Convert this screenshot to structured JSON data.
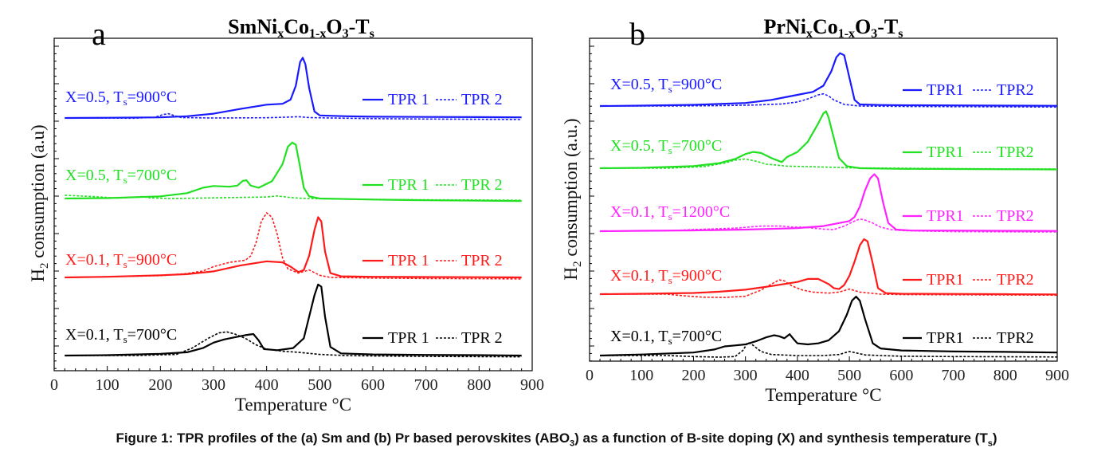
{
  "caption": {
    "text_1": "Figure 1: TPR profiles of the (a) Sm and (b) Pr based perovskites (ABO",
    "sub_1": "3",
    "text_2": ") as a function of B-site doping (X) and synthesis temperature (T",
    "sub_2": "s",
    "text_3": ")"
  },
  "colors": {
    "black": "#000000",
    "red": "#ff1a1a",
    "green": "#22e022",
    "blue": "#1a1aff",
    "magenta": "#ff22ff"
  },
  "chart_data": [
    {
      "type": "line",
      "panel_letter": "a",
      "title_parts": {
        "a": "SmNi",
        "x": "x",
        "b": "Co",
        "c": "1-x",
        "d": "O",
        "e": "3",
        "f": "-T",
        "g": "s"
      },
      "xlabel": "Temperature °C",
      "ylabel_parts": {
        "a": "H",
        "sub": "2",
        "b": " consumption (a.u)"
      },
      "xlim": [
        0,
        900
      ],
      "xticks": [
        "0",
        "100",
        "200",
        "300",
        "400",
        "500",
        "600",
        "700",
        "800",
        "900"
      ],
      "legend_placement": "right of each trace",
      "series": [
        {
          "label_parts": {
            "a": "X=0.5, T",
            "sub": "s",
            "b": "=900°C"
          },
          "color": "blue",
          "legend": {
            "solid": "TPR 1",
            "dashed": "TPR 2"
          },
          "tpr1_x": [
            20,
            100,
            200,
            250,
            300,
            350,
            400,
            430,
            445,
            455,
            463,
            468,
            473,
            480,
            490,
            500,
            550,
            600,
            700,
            800,
            880
          ],
          "tpr1_y": [
            0,
            0.1,
            0.3,
            0.8,
            2.0,
            4.2,
            6.2,
            6.6,
            8.5,
            15,
            26,
            28,
            25,
            14,
            3.0,
            1.2,
            0.8,
            0.6,
            0.5,
            0.4,
            0.3
          ],
          "tpr2_x": [
            20,
            150,
            190,
            205,
            215,
            225,
            240,
            300,
            400,
            440,
            460,
            480,
            520,
            600,
            700,
            800,
            880
          ],
          "tpr2_y": [
            0,
            -0.1,
            0.3,
            1.6,
            2.0,
            1.2,
            0.2,
            0,
            0.1,
            0.4,
            0.6,
            0.2,
            0,
            -0.3,
            -0.5,
            -0.6,
            -0.7
          ]
        },
        {
          "label_parts": {
            "a": "X=0.5, T",
            "sub": "s",
            "b": "=700°C"
          },
          "color": "green",
          "legend": {
            "solid": "TPR 1",
            "dashed": "TPR 2"
          },
          "tpr1_x": [
            20,
            100,
            200,
            250,
            280,
            300,
            330,
            345,
            355,
            362,
            370,
            385,
            410,
            430,
            440,
            448,
            455,
            462,
            470,
            480,
            500,
            600,
            700,
            800,
            880
          ],
          "tpr1_y": [
            0,
            0.2,
            1.0,
            2.5,
            5.0,
            5.8,
            5.5,
            6.0,
            8.2,
            8.5,
            6.0,
            5.0,
            8.0,
            16,
            24,
            26,
            25,
            16,
            5.0,
            1.0,
            0,
            -0.5,
            -0.8,
            -1.0,
            -1.2
          ],
          "tpr2_x": [
            20,
            80,
            120,
            150,
            165,
            180,
            220,
            300,
            400,
            420,
            440,
            460,
            480,
            520,
            600,
            700,
            800,
            880
          ],
          "tpr2_y": [
            1.5,
            0.8,
            0.2,
            0.6,
            0.9,
            0.3,
            0,
            0.3,
            0.7,
            1.2,
            0.6,
            0.2,
            0,
            -0.2,
            -0.4,
            -0.6,
            -0.7,
            -0.8
          ]
        },
        {
          "label_parts": {
            "a": "X=0.1, T",
            "sub": "s",
            "b": "=900°C"
          },
          "color": "red",
          "legend": {
            "solid": "TPR 1",
            "dashed": "TPR 2"
          },
          "tpr1_x": [
            20,
            100,
            200,
            250,
            300,
            350,
            400,
            430,
            445,
            460,
            470,
            480,
            490,
            497,
            503,
            510,
            520,
            540,
            600,
            700,
            800,
            880
          ],
          "tpr1_y": [
            0,
            0.3,
            1.0,
            1.5,
            2.8,
            5.5,
            7.5,
            7.0,
            5.0,
            2.5,
            3.5,
            10,
            22,
            28,
            26,
            12,
            2.0,
            0.5,
            0.3,
            0.2,
            0.1,
            0
          ],
          "tpr2_x": [
            20,
            100,
            200,
            250,
            280,
            300,
            330,
            360,
            370,
            380,
            390,
            400,
            410,
            420,
            430,
            440,
            460,
            480,
            500,
            520,
            600,
            700,
            800,
            880
          ],
          "tpr2_y": [
            0,
            0.3,
            0.8,
            1.8,
            3.0,
            5.0,
            7.0,
            8.0,
            10,
            16,
            26,
            30,
            28,
            20,
            9.0,
            4.0,
            2.0,
            3.5,
            1.0,
            0,
            -0.3,
            -0.5,
            -0.6,
            -0.7
          ]
        },
        {
          "label_parts": {
            "a": "X=0.1, T",
            "sub": "s",
            "b": "=700°C"
          },
          "color": "black",
          "legend": {
            "solid": "TPR 1",
            "dashed": "TPR 2"
          },
          "tpr1_x": [
            20,
            100,
            200,
            250,
            280,
            300,
            320,
            340,
            360,
            375,
            385,
            395,
            420,
            450,
            470,
            480,
            490,
            497,
            503,
            510,
            520,
            540,
            600,
            700,
            800,
            880
          ],
          "tpr1_y": [
            0,
            0.2,
            0.8,
            1.5,
            3.5,
            6.0,
            7.5,
            8.5,
            9.5,
            10,
            7.0,
            3.0,
            2.5,
            3.5,
            8.0,
            18,
            28,
            33,
            32,
            18,
            4.0,
            1.0,
            0.5,
            0.3,
            0.2,
            0
          ],
          "tpr2_x": [
            20,
            150,
            230,
            260,
            290,
            310,
            325,
            340,
            360,
            380,
            400,
            430,
            460,
            500,
            550,
            600,
            700,
            800,
            880
          ],
          "tpr2_y": [
            0,
            0,
            0.5,
            3.5,
            8.0,
            10.5,
            11,
            10,
            8.0,
            5.0,
            3.0,
            2.0,
            1.5,
            0.5,
            0,
            -0.2,
            -0.4,
            -0.5,
            -0.6
          ]
        }
      ]
    },
    {
      "type": "line",
      "panel_letter": "b",
      "title_parts": {
        "a": "PrNi",
        "x": "x",
        "b": "Co",
        "c": "1-x",
        "d": "O",
        "e": "3",
        "f": "-T",
        "g": "s"
      },
      "xlabel": "Temperature °C",
      "ylabel_parts": {
        "a": "H",
        "sub": "2",
        "b": " consumption (a.u.)"
      },
      "xlim": [
        0,
        900
      ],
      "xticks": [
        "0",
        "100",
        "200",
        "300",
        "400",
        "500",
        "600",
        "700",
        "800",
        "900"
      ],
      "legend_placement": "right of each trace",
      "series": [
        {
          "label_parts": {
            "a": "X=0.5, T",
            "sub": "s",
            "b": "=900°C"
          },
          "color": "blue",
          "legend": {
            "solid": "TPR1",
            "dashed": "TPR2"
          },
          "tpr1_x": [
            20,
            100,
            200,
            300,
            350,
            380,
            400,
            430,
            450,
            465,
            475,
            482,
            490,
            500,
            510,
            520,
            560,
            600,
            700,
            800,
            900
          ],
          "tpr1_y": [
            0,
            0.2,
            0.6,
            1.5,
            3.0,
            4.5,
            5.5,
            7.0,
            10,
            17,
            24,
            26,
            25,
            14,
            3.0,
            0.8,
            0.5,
            0.4,
            0.3,
            0.2,
            0.1
          ],
          "tpr2_x": [
            20,
            150,
            250,
            320,
            370,
            400,
            420,
            440,
            450,
            460,
            470,
            490,
            520,
            600,
            700,
            800,
            900
          ],
          "tpr2_y": [
            0,
            0,
            0.2,
            0.5,
            1.0,
            2.0,
            3.5,
            5.5,
            6.0,
            5.0,
            3.0,
            0.8,
            0,
            -0.2,
            -0.3,
            -0.4,
            -0.5
          ]
        },
        {
          "label_parts": {
            "a": "X=0.5, T",
            "sub": "s",
            "b": "=700°C"
          },
          "color": "green",
          "legend": {
            "solid": "TPR1",
            "dashed": "TPR2"
          },
          "tpr1_x": [
            20,
            100,
            200,
            250,
            280,
            300,
            315,
            330,
            350,
            370,
            380,
            400,
            420,
            440,
            450,
            455,
            460,
            470,
            480,
            495,
            520,
            600,
            700,
            800,
            900
          ],
          "tpr1_y": [
            0,
            0.2,
            1.0,
            2.5,
            4.5,
            7.0,
            8.0,
            7.5,
            5.0,
            3.0,
            5.5,
            8.0,
            13,
            22,
            27,
            28,
            25,
            15,
            5.0,
            1.0,
            0,
            -0.3,
            -0.4,
            -0.5,
            -0.6
          ],
          "tpr2_x": [
            20,
            150,
            220,
            260,
            280,
            300,
            320,
            340,
            380,
            420,
            460,
            500,
            600,
            700,
            800,
            900
          ],
          "tpr2_y": [
            0,
            0,
            0.8,
            2.5,
            4.0,
            4.5,
            3.5,
            2.0,
            1.0,
            0.8,
            0.5,
            0.2,
            0,
            -0.2,
            -0.3,
            -0.4
          ]
        },
        {
          "label_parts": {
            "a": "X=0.1, T",
            "sub": "s",
            "b": "=1200°C"
          },
          "color": "magenta",
          "legend": {
            "solid": "TPR1",
            "dashed": "TPR2"
          },
          "tpr1_x": [
            20,
            100,
            200,
            300,
            400,
            450,
            480,
            500,
            510,
            520,
            530,
            540,
            548,
            555,
            565,
            575,
            590,
            620,
            700,
            800,
            900
          ],
          "tpr1_y": [
            0,
            0.2,
            0.4,
            0.8,
            1.5,
            2.5,
            4.0,
            5.0,
            7.0,
            12,
            20,
            26,
            28,
            26,
            14,
            4.0,
            0.8,
            0.3,
            0.3,
            0.2,
            0.1
          ],
          "tpr2_x": [
            20,
            150,
            200,
            280,
            330,
            370,
            390,
            410,
            430,
            450,
            470,
            490,
            510,
            520,
            530,
            545,
            560,
            580,
            600,
            650,
            700,
            800,
            900
          ],
          "tpr2_y": [
            0,
            0.2,
            0.8,
            1.5,
            2.5,
            2.5,
            2.0,
            2.0,
            1.5,
            1.0,
            0.8,
            2.5,
            5.0,
            6.0,
            5.5,
            4.0,
            2.0,
            0.8,
            0.3,
            0,
            -0.2,
            -0.3,
            -0.4
          ]
        },
        {
          "label_parts": {
            "a": "X=0.1, T",
            "sub": "s",
            "b": "=900°C"
          },
          "color": "red",
          "legend": {
            "solid": "TPR1",
            "dashed": "TPR2"
          },
          "tpr1_x": [
            20,
            100,
            200,
            250,
            300,
            350,
            400,
            420,
            440,
            460,
            470,
            480,
            490,
            500,
            510,
            520,
            528,
            535,
            545,
            555,
            570,
            600,
            700,
            800,
            900
          ],
          "tpr1_y": [
            0,
            0.2,
            0.6,
            1.2,
            2.2,
            4.0,
            6.0,
            7.5,
            7.5,
            5.0,
            3.0,
            2.5,
            4.5,
            9.0,
            16,
            24,
            27,
            26,
            15,
            3.0,
            0.5,
            0.2,
            0.1,
            0,
            -0.1
          ],
          "tpr2_x": [
            20,
            150,
            180,
            220,
            260,
            300,
            330,
            350,
            365,
            375,
            390,
            410,
            430,
            460,
            480,
            500,
            520,
            560,
            600,
            700,
            800,
            900
          ],
          "tpr2_y": [
            0,
            0,
            -0.8,
            -1.5,
            -1.6,
            -1.0,
            2.0,
            5.0,
            7.0,
            6.5,
            4.0,
            2.0,
            1.0,
            0.5,
            1.0,
            2.5,
            1.0,
            0,
            -0.2,
            -0.3,
            -0.4,
            -0.5
          ]
        },
        {
          "label_parts": {
            "a": "X=0.1, T",
            "sub": "s",
            "b": "=700°C"
          },
          "color": "black",
          "legend": {
            "solid": "TPR1",
            "dashed": "TPR2"
          },
          "tpr1_x": [
            20,
            100,
            200,
            240,
            260,
            280,
            300,
            320,
            340,
            355,
            365,
            375,
            385,
            393,
            400,
            420,
            440,
            460,
            480,
            495,
            505,
            513,
            520,
            530,
            545,
            560,
            600,
            700,
            800,
            900
          ],
          "tpr1_y": [
            0,
            0.5,
            1.5,
            3.0,
            4.5,
            5.0,
            5.5,
            7.0,
            9.0,
            10,
            9.5,
            8.5,
            10.5,
            8.0,
            6.0,
            5.5,
            6.0,
            7.5,
            12,
            20,
            27,
            29,
            27,
            18,
            6.0,
            3.5,
            2.5,
            2.0,
            1.8,
            1.5
          ],
          "tpr2_x": [
            20,
            150,
            200,
            250,
            280,
            295,
            305,
            315,
            330,
            350,
            400,
            450,
            480,
            500,
            510,
            530,
            560,
            600,
            700,
            800,
            900
          ],
          "tpr2_y": [
            0,
            0,
            -0.5,
            -0.8,
            -0.5,
            2.5,
            6.5,
            5.0,
            2.0,
            0.5,
            0,
            0,
            0.5,
            2.0,
            1.5,
            0.3,
            0,
            -0.3,
            -0.5,
            -0.6,
            -0.7
          ]
        }
      ]
    }
  ]
}
